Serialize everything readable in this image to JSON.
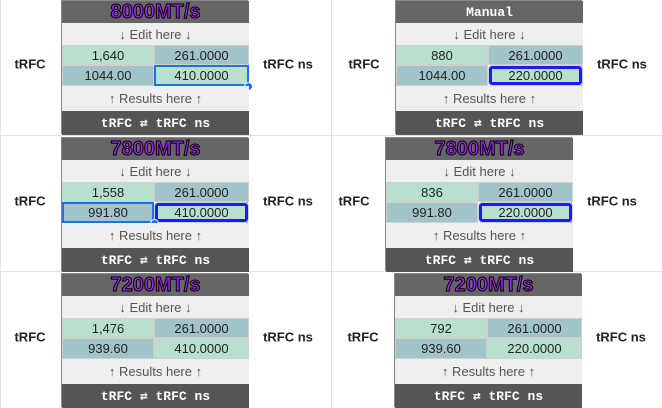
{
  "panels": [
    {
      "header": "8000MT/s",
      "edit": "↓ Edit here ↓",
      "row1": [
        "1,640",
        "261.0000"
      ],
      "row2": [
        "1044.00",
        "410.0000"
      ],
      "results": "↑ Results here ↑",
      "footer": "tRFC ⇄ tRFC ns",
      "label_left": "tRFC",
      "label_right": "tRFC ns"
    },
    {
      "header": "Manual",
      "edit": "↓ Edit here ↓",
      "row1": [
        "880",
        "261.0000"
      ],
      "row2": [
        "1044.00",
        "220.0000"
      ],
      "results": "↑ Results here ↑",
      "footer": "tRFC ⇄ tRFC ns",
      "label_left": "tRFC",
      "label_right": "tRFC ns"
    },
    {
      "header": "7800MT/s",
      "edit": "↓ Edit here ↓",
      "row1": [
        "1,558",
        "261.0000"
      ],
      "row2": [
        "991.80",
        "410.0000"
      ],
      "results": "↑ Results here ↑",
      "footer": "tRFC ⇄ tRFC ns",
      "label_left": "tRFC",
      "label_right": "tRFC ns"
    },
    {
      "header": "7800MT/s",
      "edit": "↓ Edit here ↓",
      "row1": [
        "836",
        "261.0000"
      ],
      "row2": [
        "991.80",
        "220.0000"
      ],
      "results": "↑ Results here ↑",
      "footer": "tRFC ⇄ tRFC ns",
      "label_left": "tRFC",
      "label_right": "tRFC ns"
    },
    {
      "header": "7200MT/s",
      "edit": "↓ Edit here ↓",
      "row1": [
        "1,476",
        "261.0000"
      ],
      "row2": [
        "939.60",
        "410.0000"
      ],
      "results": "↑ Results here ↑",
      "footer": "tRFC ⇄ tRFC ns",
      "label_left": "tRFC",
      "label_right": "tRFC ns"
    },
    {
      "header": "7200MT/s",
      "edit": "↓ Edit here ↓",
      "row1": [
        "792",
        "261.0000"
      ],
      "row2": [
        "939.60",
        "220.0000"
      ],
      "results": "↑ Results here ↑",
      "footer": "tRFC ⇄ tRFC ns",
      "label_left": "tRFC",
      "label_right": "tRFC ns"
    }
  ]
}
